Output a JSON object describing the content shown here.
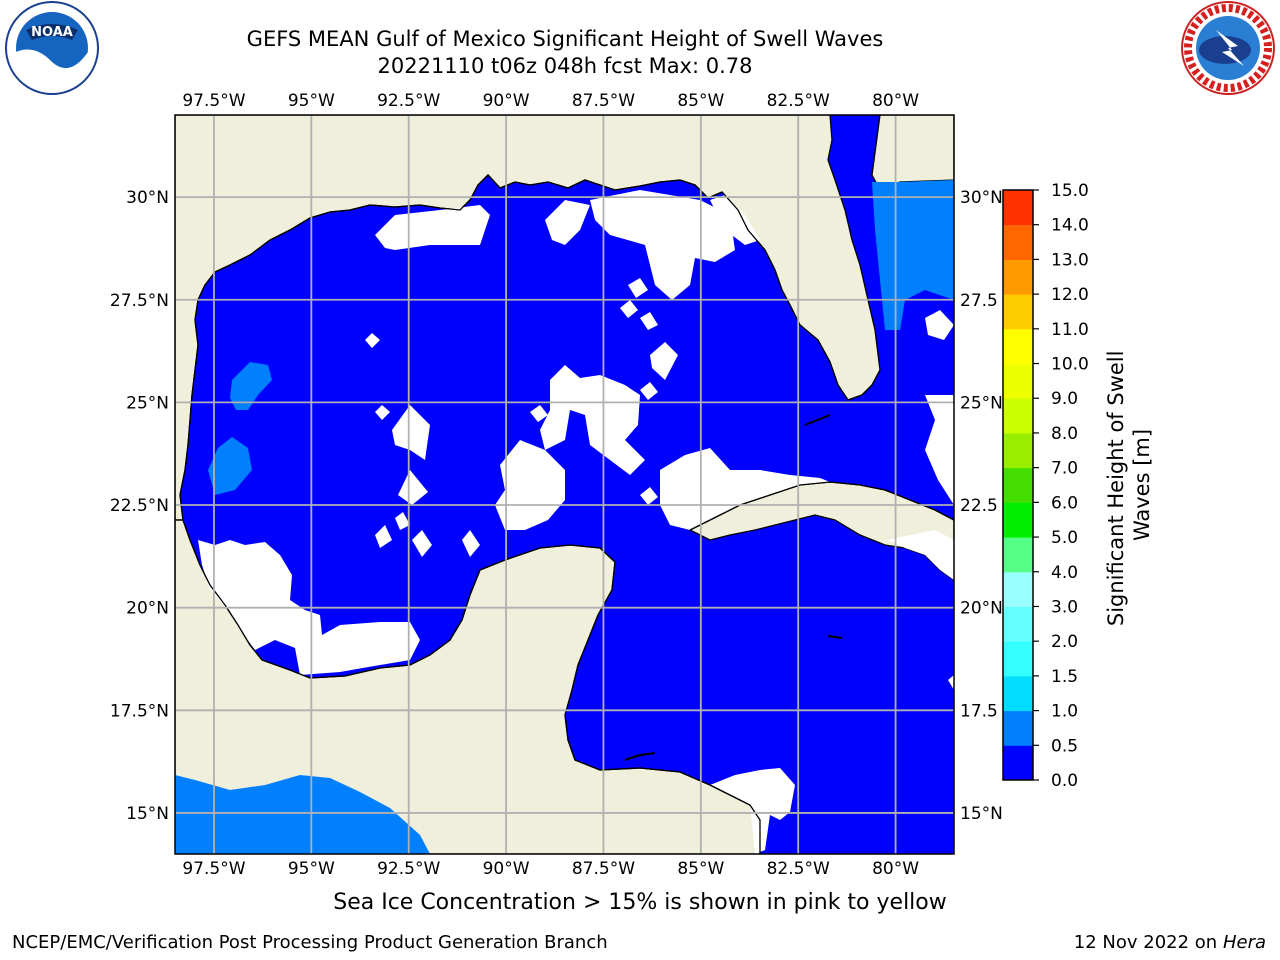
{
  "title": "GEFS MEAN Gulf of Mexico Significant Height of Swell Waves",
  "subtitle": "20221110 t06z 048h fcst   Max: 0.78",
  "bottom_note": "Sea Ice Concentration > 15% is shown in pink to yellow",
  "footer": {
    "left": "NCEP/EMC/Verification Post Processing Product Generation Branch",
    "right_date": "12 Nov 2022 on",
    "right_host": "Hera"
  },
  "logos": {
    "left": {
      "name": "noaa-logo",
      "text": "NOAA"
    },
    "right": {
      "name": "nws-logo",
      "text": "NATIONAL WEATHER SERVICE"
    }
  },
  "map": {
    "lon_range": [
      -98.5,
      -78.5
    ],
    "lat_range": [
      14,
      32
    ],
    "lon_ticks": [
      "97.5°W",
      "95°W",
      "92.5°W",
      "90°W",
      "87.5°W",
      "85°W",
      "82.5°W",
      "80°W"
    ],
    "lon_tick_values": [
      -97.5,
      -95,
      -92.5,
      -90,
      -87.5,
      -85,
      -82.5,
      -80
    ],
    "lat_ticks_left": [
      "15°N",
      "17.5°N",
      "20°N",
      "22.5°N",
      "25°N",
      "27.5°N",
      "30°N"
    ],
    "lat_ticks_right": [
      "15°N",
      "17.5",
      "20°N",
      "22.5",
      "25°N",
      "27.5",
      "30°N"
    ],
    "lat_tick_values": [
      15,
      17.5,
      20,
      22.5,
      25,
      27.5,
      30
    ],
    "colors": {
      "land": "#efefdc",
      "ocean_low": "#0000ff",
      "ocean_mid": "#0080ff",
      "grid": "#b0b0b0"
    }
  },
  "colorbar": {
    "label": "Significant Height of Swell Waves [m]",
    "label_line1": "Significant Height of Swell",
    "label_line2": "Waves [m]",
    "tick_labels": [
      "0.0",
      "0.5",
      "1.0",
      "1.5",
      "2.0",
      "3.0",
      "4.0",
      "5.0",
      "6.0",
      "7.0",
      "8.0",
      "9.0",
      "10.0",
      "11.0",
      "12.0",
      "13.0",
      "14.0",
      "15.0"
    ],
    "colors": [
      "#0000ff",
      "#0080ff",
      "#00ddff",
      "#33ffff",
      "#66ffff",
      "#99ffff",
      "#55ff88",
      "#00ee00",
      "#44dd00",
      "#99ee00",
      "#ccff00",
      "#eeff00",
      "#ffff00",
      "#ffcc00",
      "#ff9900",
      "#ff6600",
      "#ff3300",
      "#ff0000"
    ]
  },
  "chart_data": {
    "type": "heatmap",
    "title": "GEFS MEAN Gulf of Mexico Significant Height of Swell Waves",
    "subtitle": "20221110 t06z 048h fcst   Max: 0.78",
    "variable": "Significant Height of Swell Waves [m]",
    "max": 0.78,
    "levels": [
      0.0,
      0.5,
      1.0,
      1.5,
      2.0,
      3.0,
      4.0,
      5.0,
      6.0,
      7.0,
      8.0,
      9.0,
      10.0,
      11.0,
      12.0,
      13.0,
      14.0,
      15.0
    ],
    "xlim": [
      -98.5,
      -78.5
    ],
    "ylim": [
      14,
      32
    ],
    "grid": true
  }
}
